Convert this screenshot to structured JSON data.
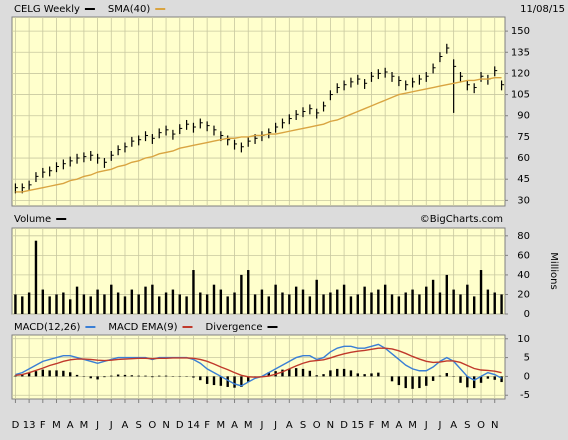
{
  "chart_data": [
    {
      "type": "ohlc",
      "date": "11/08/15",
      "ylim": [
        26,
        160
      ],
      "yticks": [
        30,
        45,
        60,
        75,
        90,
        105,
        120,
        135,
        150
      ],
      "grid": true,
      "series": [
        {
          "name": "CELG Weekly",
          "color": "#000000",
          "high": [
            42,
            42,
            44,
            50,
            53,
            54,
            57,
            59,
            61,
            63,
            64,
            65,
            63,
            60,
            65,
            69,
            71,
            75,
            76,
            79,
            77,
            81,
            83,
            80,
            84,
            87,
            85,
            88,
            86,
            83,
            79,
            76,
            73,
            71,
            75,
            77,
            79,
            81,
            85,
            88,
            91,
            94,
            96,
            98,
            95,
            100,
            108,
            113,
            115,
            117,
            119,
            116,
            121,
            123,
            124,
            121,
            118,
            115,
            117,
            119,
            121,
            127,
            135,
            141,
            130,
            121,
            115,
            113,
            121,
            119,
            125,
            115
          ],
          "low": [
            35,
            35,
            37,
            43,
            46,
            47,
            50,
            52,
            54,
            56,
            57,
            58,
            56,
            53,
            58,
            62,
            64,
            68,
            69,
            72,
            70,
            74,
            76,
            73,
            77,
            80,
            78,
            81,
            79,
            76,
            72,
            69,
            66,
            64,
            68,
            70,
            72,
            74,
            78,
            81,
            84,
            87,
            89,
            91,
            88,
            93,
            101,
            106,
            108,
            110,
            112,
            109,
            114,
            116,
            117,
            114,
            111,
            108,
            110,
            112,
            114,
            120,
            128,
            134,
            92,
            114,
            108,
            106,
            114,
            112,
            118,
            108
          ],
          "close": [
            39,
            39,
            41,
            47,
            50,
            51,
            54,
            56,
            58,
            60,
            61,
            62,
            60,
            57,
            62,
            66,
            68,
            72,
            73,
            76,
            74,
            78,
            80,
            77,
            81,
            84,
            82,
            85,
            83,
            80,
            76,
            73,
            70,
            68,
            72,
            74,
            76,
            78,
            82,
            85,
            88,
            91,
            93,
            95,
            92,
            97,
            105,
            110,
            112,
            114,
            116,
            113,
            118,
            120,
            121,
            118,
            115,
            112,
            114,
            116,
            118,
            124,
            132,
            138,
            125,
            118,
            112,
            110,
            118,
            116,
            122,
            112
          ]
        },
        {
          "name": "SMA(40)",
          "color": "#d9a441",
          "values": [
            36,
            36,
            37,
            38,
            39,
            40,
            41,
            42,
            44,
            45,
            47,
            48,
            50,
            51,
            52,
            54,
            55,
            57,
            58,
            60,
            61,
            63,
            64,
            65,
            67,
            68,
            69,
            70,
            71,
            72,
            73,
            74,
            74,
            75,
            75,
            76,
            76,
            77,
            77,
            78,
            79,
            80,
            81,
            82,
            83,
            84,
            86,
            87,
            89,
            91,
            93,
            95,
            97,
            99,
            101,
            103,
            105,
            106,
            107,
            108,
            109,
            110,
            111,
            112,
            113,
            114,
            115,
            115,
            116,
            116,
            117,
            117
          ]
        }
      ]
    },
    {
      "type": "bar",
      "y_label": "Millions",
      "source": "©BigCharts.com",
      "ylim": [
        0,
        88
      ],
      "yticks": [
        0,
        20,
        40,
        60,
        80
      ],
      "grid": true,
      "series": [
        {
          "name": "Volume",
          "color": "#000000",
          "values": [
            20,
            18,
            22,
            75,
            25,
            18,
            20,
            22,
            15,
            28,
            20,
            18,
            25,
            20,
            30,
            22,
            18,
            25,
            20,
            28,
            30,
            18,
            22,
            25,
            20,
            18,
            45,
            22,
            20,
            30,
            25,
            18,
            22,
            40,
            45,
            20,
            25,
            18,
            30,
            22,
            20,
            28,
            25,
            18,
            35,
            20,
            22,
            25,
            30,
            18,
            20,
            28,
            22,
            25,
            30,
            20,
            18,
            22,
            25,
            20,
            28,
            35,
            22,
            40,
            25,
            20,
            30,
            18,
            45,
            25,
            22,
            20
          ]
        }
      ]
    },
    {
      "type": "line",
      "ylim": [
        -6,
        11
      ],
      "yticks": [
        -5,
        0,
        5,
        10
      ],
      "grid": true,
      "categories": [
        "D",
        null,
        "13",
        null,
        "F",
        null,
        "M",
        null,
        "A",
        null,
        "M",
        null,
        "J",
        null,
        "J",
        null,
        "A",
        null,
        "S",
        null,
        "O",
        null,
        "N",
        null,
        "D",
        null,
        "14",
        null,
        "F",
        null,
        "M",
        null,
        "A",
        null,
        "M",
        null,
        "J",
        null,
        "J",
        null,
        "A",
        null,
        "S",
        null,
        "O",
        null,
        "N",
        null,
        "D",
        null,
        "15",
        null,
        "F",
        null,
        "M",
        null,
        "A",
        null,
        "M",
        null,
        "J",
        null,
        "J",
        null,
        "A",
        null,
        "S",
        null,
        "O",
        null,
        "N",
        null
      ],
      "series": [
        {
          "name": "MACD(12,26)",
          "color": "#3a7fd5",
          "values": [
            0.5,
            1,
            2,
            3,
            4,
            4.5,
            5,
            5.5,
            5.5,
            5,
            4.5,
            4,
            3.5,
            4,
            4.5,
            5,
            5,
            5,
            5,
            5,
            4.5,
            5,
            5,
            5,
            5,
            5,
            4.5,
            3.5,
            2,
            1,
            0,
            -1,
            -2,
            -2.5,
            -1.5,
            -0.5,
            0,
            1,
            2,
            3,
            4,
            5,
            5.5,
            5.5,
            4.5,
            5,
            6.5,
            7.5,
            8,
            8,
            7.5,
            7.5,
            8,
            8.5,
            7.5,
            6,
            4.5,
            3,
            2,
            1.5,
            1.5,
            2.5,
            4,
            5,
            4,
            2,
            0,
            -1,
            0,
            1,
            0.5,
            -0.5
          ]
        },
        {
          "name": "MACD EMA(9)",
          "color": "#c0392b",
          "values": [
            0.3,
            0.5,
            1,
            1.6,
            2.2,
            2.9,
            3.4,
            4,
            4.4,
            4.6,
            4.6,
            4.5,
            4.3,
            4.2,
            4.3,
            4.5,
            4.6,
            4.7,
            4.8,
            4.8,
            4.7,
            4.8,
            4.8,
            4.9,
            4.9,
            4.9,
            4.8,
            4.5,
            4,
            3.3,
            2.5,
            1.8,
            1,
            0.3,
            -0.1,
            -0.2,
            -0.1,
            0.1,
            0.6,
            1.2,
            2,
            2.8,
            3.5,
            4,
            4.2,
            4.4,
            4.9,
            5.5,
            6,
            6.4,
            6.7,
            6.9,
            7.2,
            7.5,
            7.5,
            7.3,
            6.8,
            6.1,
            5.3,
            4.6,
            4,
            3.7,
            3.8,
            4.1,
            4.1,
            3.7,
            2.9,
            2.1,
            1.7,
            1.6,
            1.4,
            1
          ]
        },
        {
          "name": "Divergence",
          "color": "#000000",
          "style": "bar",
          "values": [
            0.2,
            0.5,
            1,
            1.4,
            1.8,
            1.6,
            1.6,
            1.5,
            1.1,
            0.4,
            -0.1,
            -0.5,
            -0.8,
            -0.2,
            0.2,
            0.5,
            0.4,
            0.3,
            0.2,
            0.2,
            -0.2,
            0.2,
            0.2,
            0.1,
            0.1,
            0.1,
            -0.3,
            -1,
            -2,
            -2.3,
            -2.5,
            -2.8,
            -3,
            -2.8,
            -1.4,
            -0.3,
            0.1,
            1.1,
            1.4,
            1.8,
            2,
            2.2,
            2,
            1.5,
            0.3,
            0.6,
            1.6,
            2,
            2,
            1.6,
            0.8,
            0.6,
            0.8,
            1,
            0,
            -1.3,
            -2.3,
            -3.1,
            -3.3,
            -3.1,
            -2.5,
            -1.2,
            0.2,
            0.9,
            -0.1,
            -1.7,
            -2.9,
            -3.1,
            -1.7,
            -0.6,
            -0.9,
            -1.5
          ]
        }
      ]
    }
  ]
}
